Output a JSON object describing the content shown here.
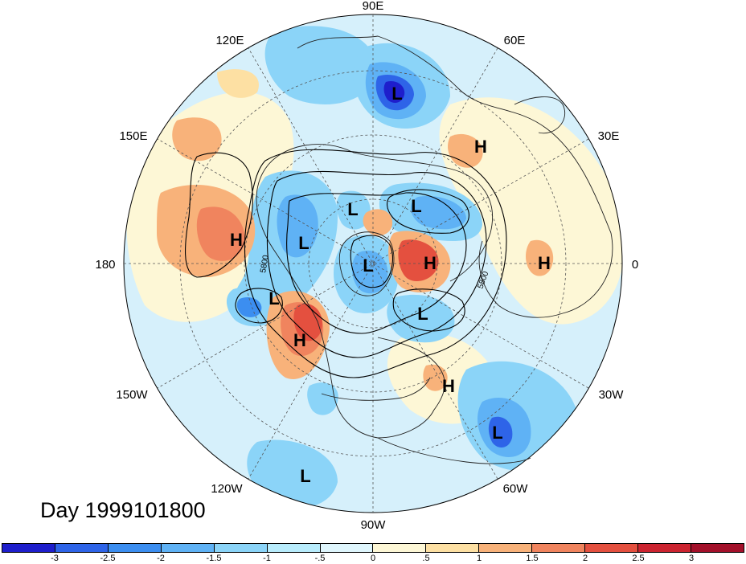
{
  "map": {
    "projection": "north-polar-stereographic",
    "lon_labels": {
      "90E": "90E",
      "60E": "60E",
      "30E": "30E",
      "0": "0",
      "30W": "30W",
      "60W": "60W",
      "90W": "90W",
      "120W": "120W",
      "150W": "150W",
      "180": "180",
      "150E": "150E",
      "120E": "120E"
    },
    "contour_labels": [
      "5800",
      "5800"
    ],
    "pressure_centers": [
      {
        "type": "L",
        "label": "L"
      },
      {
        "type": "H",
        "label": "H"
      },
      {
        "type": "H",
        "label": "H"
      },
      {
        "type": "L",
        "label": "L"
      },
      {
        "type": "L",
        "label": "L"
      },
      {
        "type": "L",
        "label": "L"
      },
      {
        "type": "L",
        "label": "L"
      },
      {
        "type": "H",
        "label": "H"
      },
      {
        "type": "H",
        "label": "H"
      },
      {
        "type": "L",
        "label": "L"
      },
      {
        "type": "H",
        "label": "H"
      },
      {
        "type": "L",
        "label": "L"
      },
      {
        "type": "H",
        "label": "H"
      },
      {
        "type": "L",
        "label": "L"
      },
      {
        "type": "L",
        "label": "L"
      }
    ]
  },
  "title": "Day 1999101800",
  "colorbar": {
    "colors": [
      "#1e1ecc",
      "#2e64e8",
      "#3c8ef0",
      "#5fb2f5",
      "#8bd4f8",
      "#b8ecfc",
      "#dff6fd",
      "#fdf7d6",
      "#fde0a3",
      "#f8b27a",
      "#f0845e",
      "#e4503f",
      "#cc2430",
      "#a3102a"
    ],
    "tick_labels": [
      "-3",
      "-2.5",
      "-2",
      "-1.5",
      "-1",
      "-.5",
      "0",
      ".5",
      "1",
      "1.5",
      "2",
      "2.5",
      "3"
    ]
  }
}
